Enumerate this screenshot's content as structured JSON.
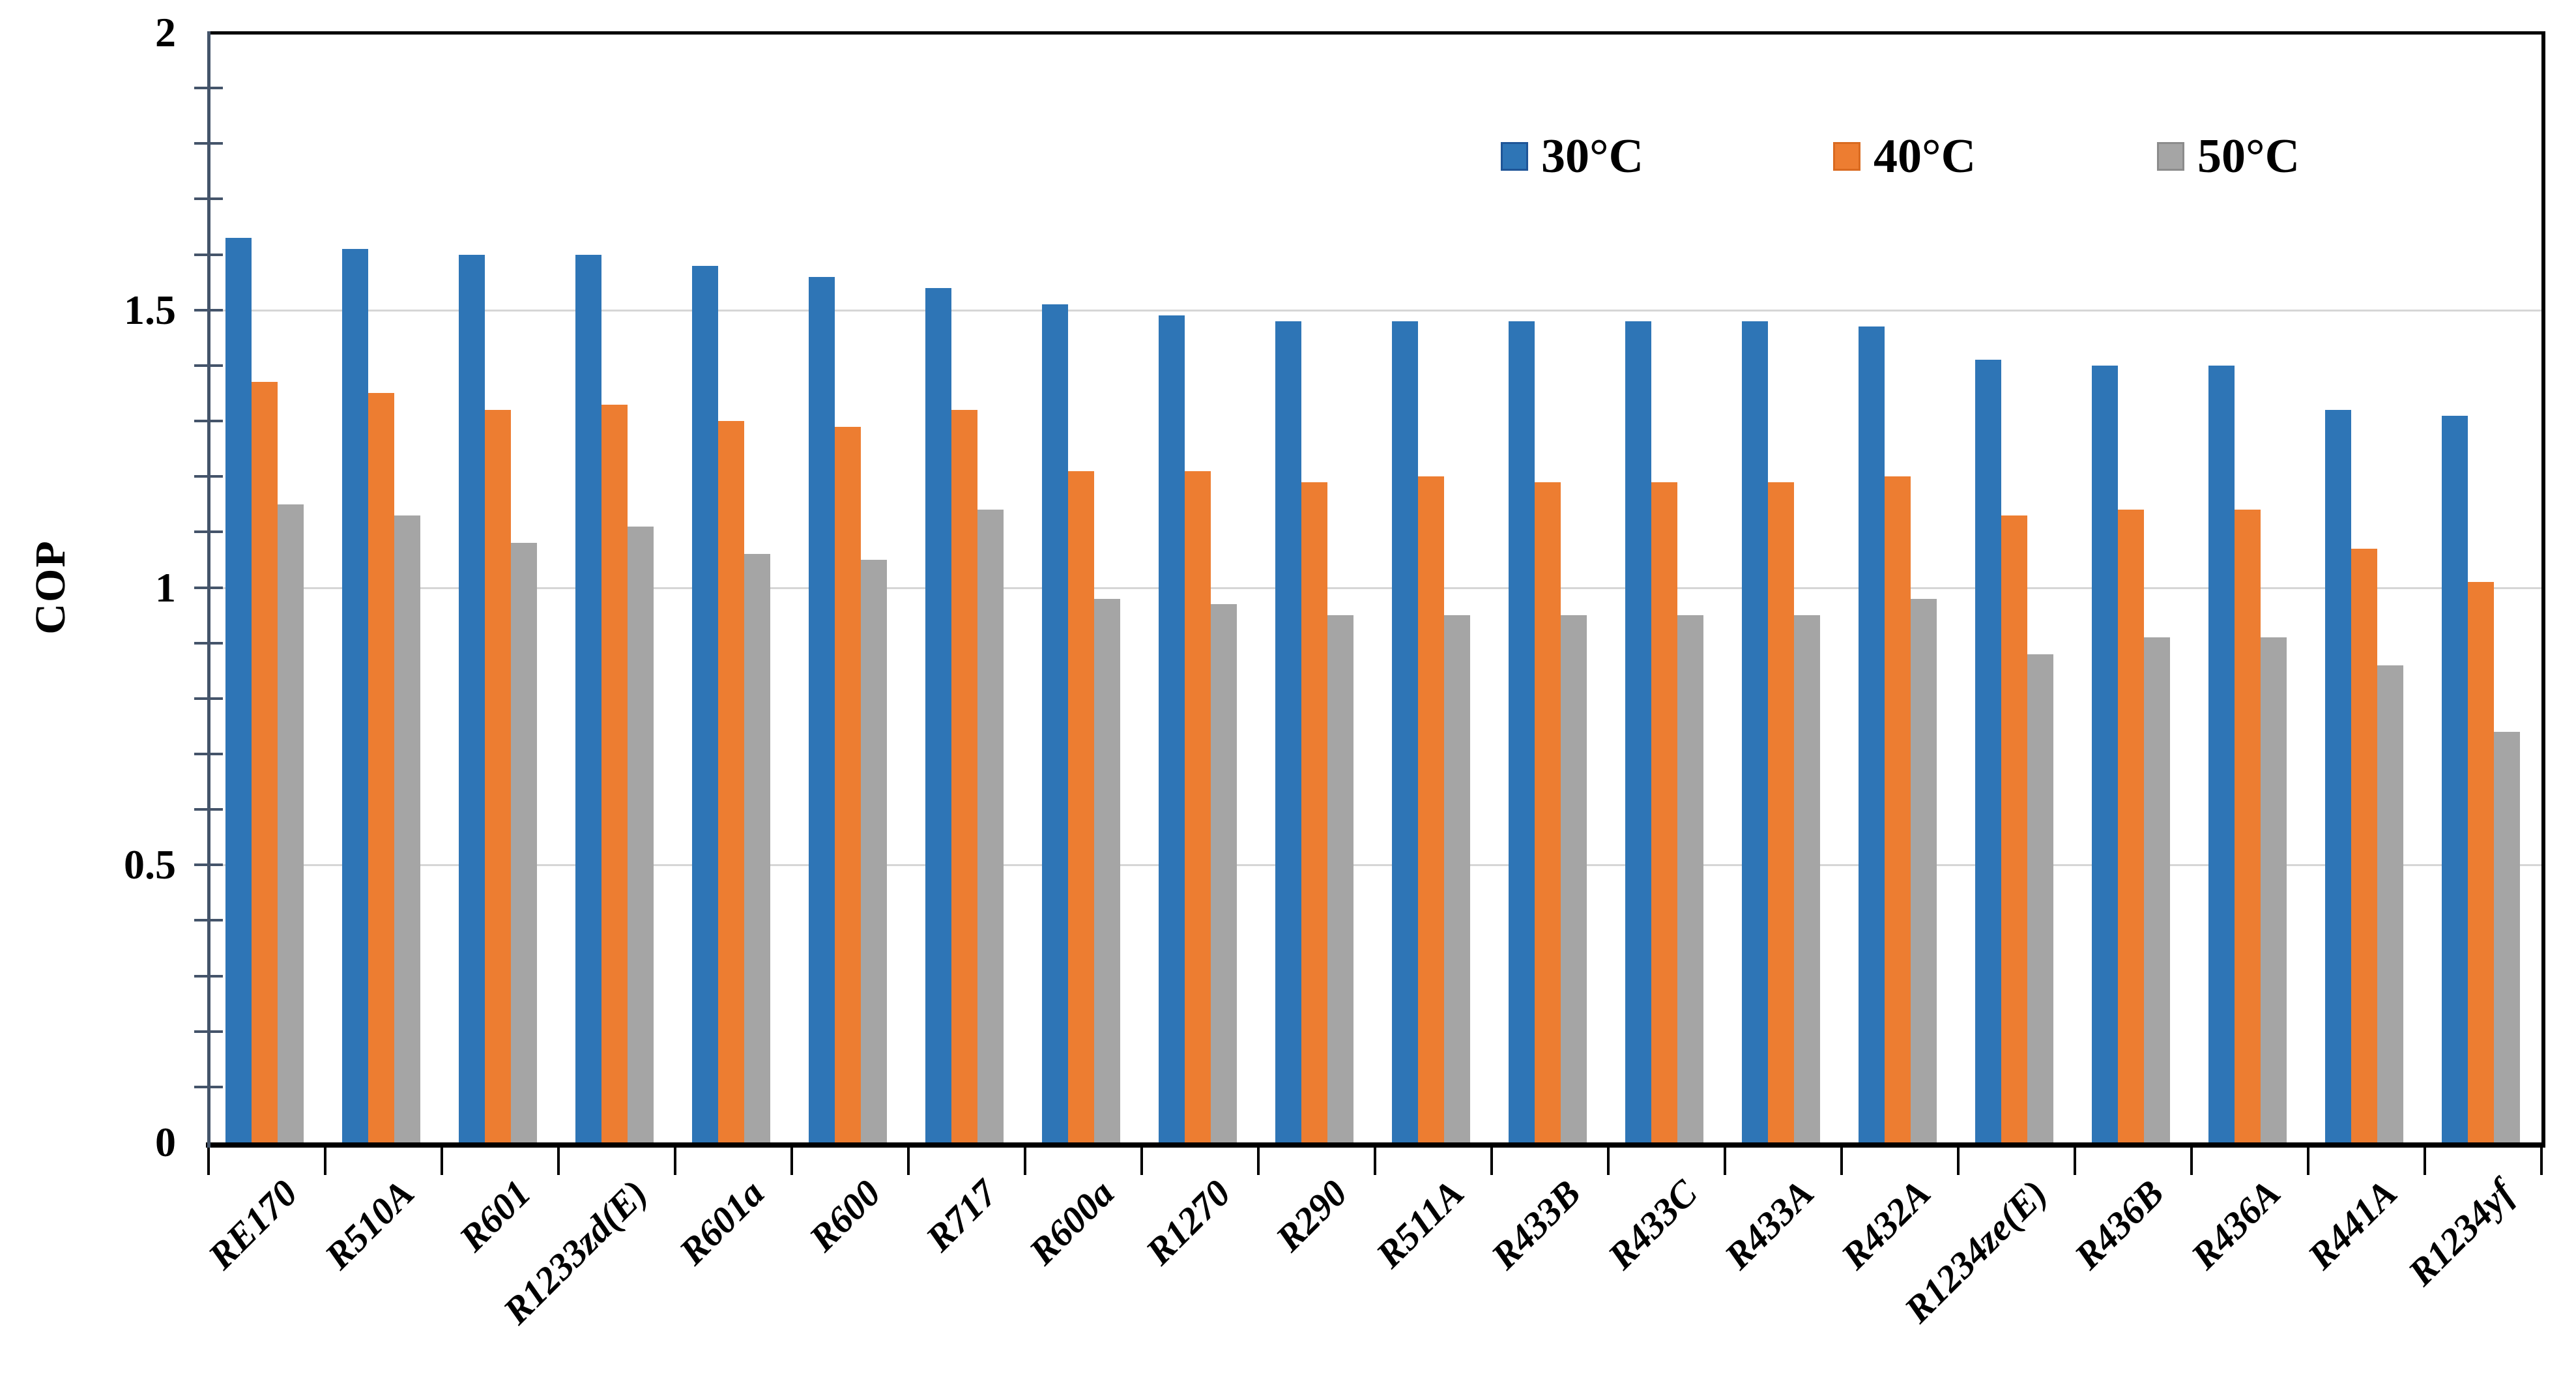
{
  "chart_data": {
    "type": "bar",
    "title": "",
    "xlabel": "",
    "ylabel": "COP",
    "ylim": [
      0,
      2
    ],
    "ytick_major": [
      0,
      0.5,
      1,
      1.5,
      2
    ],
    "ytick_minor_step": 0.1,
    "grid": "horizontal major gridlines on",
    "legend_position": "top-right inside plot",
    "categories": [
      "RE170",
      "R510A",
      "R601",
      "R1233zd(E)",
      "R601a",
      "R600",
      "R717",
      "R600a",
      "R1270",
      "R290",
      "R511A",
      "R433B",
      "R433C",
      "R433A",
      "R432A",
      "R1234ze(E)",
      "R436B",
      "R436A",
      "R441A",
      "R1234yf"
    ],
    "series": [
      {
        "name": "30°C",
        "color": "#2E75B6",
        "border": "#1F5597",
        "values": [
          1.63,
          1.61,
          1.6,
          1.6,
          1.58,
          1.56,
          1.54,
          1.51,
          1.49,
          1.48,
          1.48,
          1.48,
          1.48,
          1.48,
          1.47,
          1.41,
          1.4,
          1.4,
          1.32,
          1.31
        ]
      },
      {
        "name": "40°C",
        "color": "#ED7D31",
        "border": "#D96A20",
        "values": [
          1.37,
          1.35,
          1.32,
          1.33,
          1.3,
          1.29,
          1.32,
          1.21,
          1.21,
          1.19,
          1.2,
          1.19,
          1.19,
          1.19,
          1.2,
          1.13,
          1.14,
          1.14,
          1.07,
          1.01
        ]
      },
      {
        "name": "50°C",
        "color": "#A5A5A5",
        "border": "#8C8C8C",
        "values": [
          1.15,
          1.13,
          1.08,
          1.11,
          1.06,
          1.05,
          1.14,
          0.98,
          0.97,
          0.95,
          0.95,
          0.95,
          0.95,
          0.95,
          0.98,
          0.88,
          0.91,
          0.91,
          0.86,
          0.74
        ]
      }
    ]
  },
  "colors": {
    "background": "#FFFFFF",
    "axis_frame": "#000000",
    "value_axis": "#44546A",
    "gridline": "#D6D6D6",
    "text": "#000000"
  }
}
